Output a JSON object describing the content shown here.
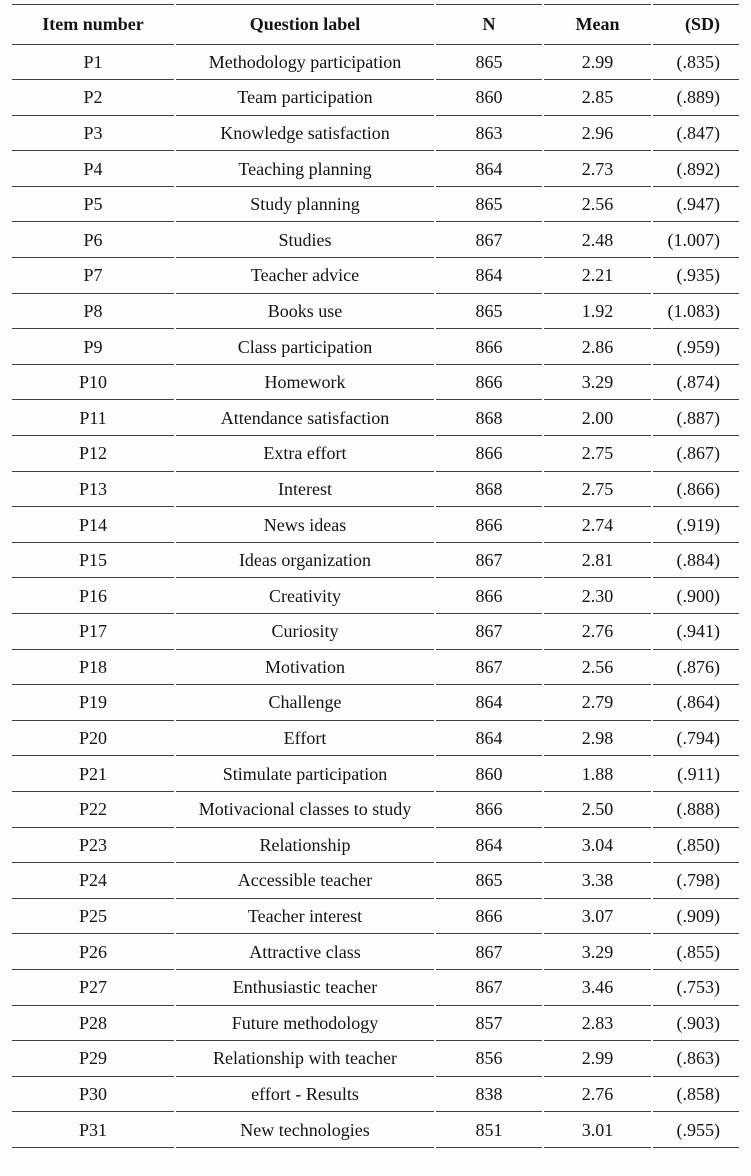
{
  "table": {
    "columns": [
      "Item number",
      "Question label",
      "N",
      "Mean",
      "(SD)"
    ],
    "rows": [
      {
        "item": "P1",
        "label": "Methodology participation",
        "n": "865",
        "mean": "2.99",
        "sd": "(.835)"
      },
      {
        "item": "P2",
        "label": "Team participation",
        "n": "860",
        "mean": "2.85",
        "sd": "(.889)"
      },
      {
        "item": "P3",
        "label": "Knowledge satisfaction",
        "n": "863",
        "mean": "2.96",
        "sd": "(.847)"
      },
      {
        "item": "P4",
        "label": "Teaching planning",
        "n": "864",
        "mean": "2.73",
        "sd": "(.892)"
      },
      {
        "item": "P5",
        "label": "Study planning",
        "n": "865",
        "mean": "2.56",
        "sd": "(.947)"
      },
      {
        "item": "P6",
        "label": "Studies",
        "n": "867",
        "mean": "2.48",
        "sd": "(1.007)"
      },
      {
        "item": "P7",
        "label": "Teacher advice",
        "n": "864",
        "mean": "2.21",
        "sd": "(.935)"
      },
      {
        "item": "P8",
        "label": "Books use",
        "n": "865",
        "mean": "1.92",
        "sd": "(1.083)"
      },
      {
        "item": "P9",
        "label": "Class participation",
        "n": "866",
        "mean": "2.86",
        "sd": "(.959)"
      },
      {
        "item": "P10",
        "label": "Homework",
        "n": "866",
        "mean": "3.29",
        "sd": "(.874)"
      },
      {
        "item": "P11",
        "label": "Attendance satisfaction",
        "n": "868",
        "mean": "2.00",
        "sd": "(.887)"
      },
      {
        "item": "P12",
        "label": "Extra effort",
        "n": "866",
        "mean": "2.75",
        "sd": "(.867)"
      },
      {
        "item": "P13",
        "label": "Interest",
        "n": "868",
        "mean": "2.75",
        "sd": "(.866)"
      },
      {
        "item": "P14",
        "label": "News ideas",
        "n": "866",
        "mean": "2.74",
        "sd": "(.919)"
      },
      {
        "item": "P15",
        "label": "Ideas organization",
        "n": "867",
        "mean": "2.81",
        "sd": "(.884)"
      },
      {
        "item": "P16",
        "label": "Creativity",
        "n": "866",
        "mean": "2.30",
        "sd": "(.900)"
      },
      {
        "item": "P17",
        "label": "Curiosity",
        "n": "867",
        "mean": "2.76",
        "sd": "(.941)"
      },
      {
        "item": "P18",
        "label": "Motivation",
        "n": "867",
        "mean": "2.56",
        "sd": "(.876)"
      },
      {
        "item": "P19",
        "label": "Challenge",
        "n": "864",
        "mean": "2.79",
        "sd": "(.864)"
      },
      {
        "item": "P20",
        "label": "Effort",
        "n": "864",
        "mean": "2.98",
        "sd": "(.794)"
      },
      {
        "item": "P21",
        "label": "Stimulate participation",
        "n": "860",
        "mean": "1.88",
        "sd": "(.911)"
      },
      {
        "item": "P22",
        "label": "Motivacional classes to study",
        "n": "866",
        "mean": "2.50",
        "sd": "(.888)"
      },
      {
        "item": "P23",
        "label": "Relationship",
        "n": "864",
        "mean": "3.04",
        "sd": "(.850)"
      },
      {
        "item": "P24",
        "label": "Accessible teacher",
        "n": "865",
        "mean": "3.38",
        "sd": "(.798)"
      },
      {
        "item": "P25",
        "label": "Teacher interest",
        "n": "866",
        "mean": "3.07",
        "sd": "(.909)"
      },
      {
        "item": "P26",
        "label": "Attractive class",
        "n": "867",
        "mean": "3.29",
        "sd": "(.855)"
      },
      {
        "item": "P27",
        "label": "Enthusiastic teacher",
        "n": "867",
        "mean": "3.46",
        "sd": "(.753)"
      },
      {
        "item": "P28",
        "label": "Future methodology",
        "n": "857",
        "mean": "2.83",
        "sd": "(.903)"
      },
      {
        "item": "P29",
        "label": "Relationship with teacher",
        "n": "856",
        "mean": "2.99",
        "sd": "(.863)"
      },
      {
        "item": "P30",
        "label": "effort - Results",
        "n": "838",
        "mean": "2.76",
        "sd": "(.858)"
      },
      {
        "item": "P31",
        "label": "New technologies",
        "n": "851",
        "mean": "3.01",
        "sd": "(.955)"
      }
    ]
  },
  "colors": {
    "rule": "#3e3e3e",
    "text": "#141414",
    "background": "#fdfdfd"
  }
}
